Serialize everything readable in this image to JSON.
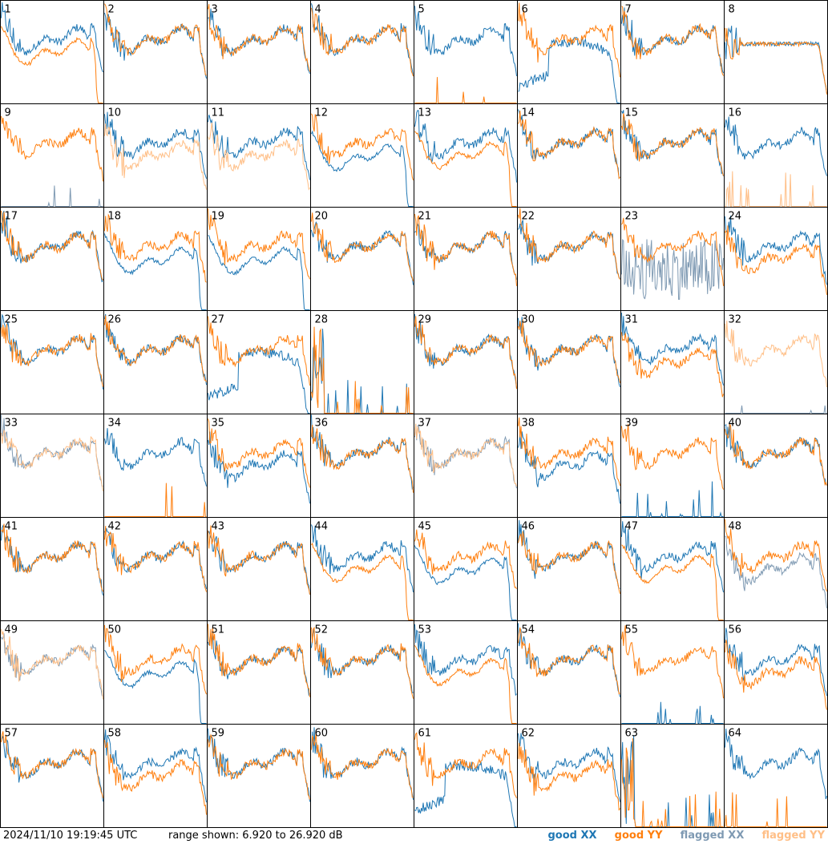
{
  "footer": {
    "timestamp": "2024/11/10 19:19:45 UTC",
    "range_text": "range shown: 6.920 to 26.920 dB"
  },
  "legend": {
    "good_xx": "good XX",
    "good_yy": "good YY",
    "flagged_xx": "flagged XX",
    "flagged_yy": "flagged YY"
  },
  "colors": {
    "good_xx": "#1f77b4",
    "good_yy": "#ff7f0e",
    "flagged_xx": "#7f9ab3",
    "flagged_yy": "#ffbf87",
    "border": "#000000"
  },
  "chart_data": {
    "type": "line",
    "grid": [
      8,
      8
    ],
    "ylim": [
      6.92,
      26.92
    ],
    "y_units": "dB",
    "panels": [
      {
        "label": "1",
        "xx": "good",
        "yy": "good",
        "shape": "yy_drop_end"
      },
      {
        "label": "2",
        "xx": "good",
        "yy": "good",
        "shape": "normal"
      },
      {
        "label": "3",
        "xx": "good",
        "yy": "good",
        "shape": "normal"
      },
      {
        "label": "4",
        "xx": "good",
        "yy": "good",
        "shape": "normal"
      },
      {
        "label": "5",
        "xx": "good",
        "yy": "good",
        "shape": "yy_dead"
      },
      {
        "label": "6",
        "xx": "good",
        "yy": "good",
        "shape": "xx_dip_mid"
      },
      {
        "label": "7",
        "xx": "good",
        "yy": "good",
        "shape": "normal"
      },
      {
        "label": "8",
        "xx": "good",
        "yy": "good",
        "shape": "flat_mid"
      },
      {
        "label": "9",
        "xx": "flagged",
        "yy": "good",
        "shape": "xx_dead"
      },
      {
        "label": "10",
        "xx": "good",
        "yy": "flagged",
        "shape": "yy_low"
      },
      {
        "label": "11",
        "xx": "good",
        "yy": "flagged",
        "shape": "yy_low"
      },
      {
        "label": "12",
        "xx": "good",
        "yy": "good",
        "shape": "xx_drop_end"
      },
      {
        "label": "13",
        "xx": "good",
        "yy": "good",
        "shape": "yy_drop_end"
      },
      {
        "label": "14",
        "xx": "good",
        "yy": "good",
        "shape": "normal"
      },
      {
        "label": "15",
        "xx": "good",
        "yy": "good",
        "shape": "normal"
      },
      {
        "label": "16",
        "xx": "good",
        "yy": "flagged",
        "shape": "yy_dead"
      },
      {
        "label": "17",
        "xx": "good",
        "yy": "good",
        "shape": "normal"
      },
      {
        "label": "18",
        "xx": "good",
        "yy": "good",
        "shape": "xx_drop_end"
      },
      {
        "label": "19",
        "xx": "good",
        "yy": "good",
        "shape": "xx_drop_end"
      },
      {
        "label": "20",
        "xx": "good",
        "yy": "good",
        "shape": "normal"
      },
      {
        "label": "21",
        "xx": "good",
        "yy": "good",
        "shape": "normal"
      },
      {
        "label": "22",
        "xx": "good",
        "yy": "good",
        "shape": "normal"
      },
      {
        "label": "23",
        "xx": "flagged",
        "yy": "good",
        "shape": "xx_noisy"
      },
      {
        "label": "24",
        "xx": "good",
        "yy": "good",
        "shape": "yy_low"
      },
      {
        "label": "25",
        "xx": "good",
        "yy": "good",
        "shape": "normal"
      },
      {
        "label": "26",
        "xx": "good",
        "yy": "good",
        "shape": "normal"
      },
      {
        "label": "27",
        "xx": "good",
        "yy": "good",
        "shape": "xx_dip_mid"
      },
      {
        "label": "28",
        "xx": "good",
        "yy": "good",
        "shape": "both_dead"
      },
      {
        "label": "29",
        "xx": "good",
        "yy": "good",
        "shape": "normal"
      },
      {
        "label": "30",
        "xx": "good",
        "yy": "good",
        "shape": "normal"
      },
      {
        "label": "31",
        "xx": "good",
        "yy": "good",
        "shape": "yy_low"
      },
      {
        "label": "32",
        "xx": "flagged",
        "yy": "flagged",
        "shape": "xx_dead"
      },
      {
        "label": "33",
        "xx": "flagged",
        "yy": "flagged",
        "shape": "normal"
      },
      {
        "label": "34",
        "xx": "good",
        "yy": "good",
        "shape": "yy_dead"
      },
      {
        "label": "35",
        "xx": "good",
        "yy": "good",
        "shape": "xx_low"
      },
      {
        "label": "36",
        "xx": "good",
        "yy": "good",
        "shape": "normal"
      },
      {
        "label": "37",
        "xx": "flagged",
        "yy": "flagged",
        "shape": "normal"
      },
      {
        "label": "38",
        "xx": "good",
        "yy": "good",
        "shape": "xx_low"
      },
      {
        "label": "39",
        "xx": "good",
        "yy": "good",
        "shape": "xx_dead"
      },
      {
        "label": "40",
        "xx": "good",
        "yy": "good",
        "shape": "normal"
      },
      {
        "label": "41",
        "xx": "good",
        "yy": "good",
        "shape": "normal"
      },
      {
        "label": "42",
        "xx": "good",
        "yy": "good",
        "shape": "normal"
      },
      {
        "label": "43",
        "xx": "good",
        "yy": "good",
        "shape": "normal"
      },
      {
        "label": "44",
        "xx": "good",
        "yy": "good",
        "shape": "yy_drop_end"
      },
      {
        "label": "45",
        "xx": "good",
        "yy": "good",
        "shape": "xx_drop_end"
      },
      {
        "label": "46",
        "xx": "good",
        "yy": "good",
        "shape": "normal"
      },
      {
        "label": "47",
        "xx": "good",
        "yy": "good",
        "shape": "yy_drop_end"
      },
      {
        "label": "48",
        "xx": "flagged",
        "yy": "good",
        "shape": "xx_low"
      },
      {
        "label": "49",
        "xx": "flagged",
        "yy": "flagged",
        "shape": "normal"
      },
      {
        "label": "50",
        "xx": "good",
        "yy": "good",
        "shape": "xx_drop_end"
      },
      {
        "label": "51",
        "xx": "good",
        "yy": "good",
        "shape": "normal"
      },
      {
        "label": "52",
        "xx": "good",
        "yy": "good",
        "shape": "normal"
      },
      {
        "label": "53",
        "xx": "good",
        "yy": "good",
        "shape": "yy_drop_end"
      },
      {
        "label": "54",
        "xx": "good",
        "yy": "good",
        "shape": "normal"
      },
      {
        "label": "55",
        "xx": "good",
        "yy": "good",
        "shape": "xx_dead"
      },
      {
        "label": "56",
        "xx": "good",
        "yy": "good",
        "shape": "yy_low"
      },
      {
        "label": "57",
        "xx": "good",
        "yy": "good",
        "shape": "normal"
      },
      {
        "label": "58",
        "xx": "good",
        "yy": "good",
        "shape": "yy_low"
      },
      {
        "label": "59",
        "xx": "good",
        "yy": "good",
        "shape": "normal"
      },
      {
        "label": "60",
        "xx": "good",
        "yy": "good",
        "shape": "normal"
      },
      {
        "label": "61",
        "xx": "good",
        "yy": "good",
        "shape": "xx_dip_mid"
      },
      {
        "label": "62",
        "xx": "good",
        "yy": "good",
        "shape": "yy_low"
      },
      {
        "label": "63",
        "xx": "good",
        "yy": "good",
        "shape": "both_dead"
      },
      {
        "label": "64",
        "xx": "good",
        "yy": "good",
        "shape": "yy_dead"
      }
    ]
  }
}
